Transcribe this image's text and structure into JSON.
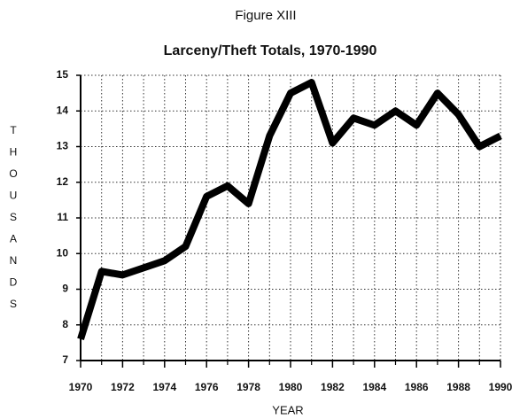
{
  "chart_data": {
    "type": "line",
    "title": "Figure XIII",
    "subtitle": "Larceny/Theft Totals, 1970-1990",
    "x_label": "YEAR",
    "y_label": "THOUSANDS",
    "x": [
      1970,
      1971,
      1972,
      1973,
      1974,
      1975,
      1976,
      1977,
      1978,
      1979,
      1980,
      1981,
      1982,
      1983,
      1984,
      1985,
      1986,
      1987,
      1988,
      1989,
      1990
    ],
    "series": [
      {
        "name": "Larceny/Theft",
        "color": "#000000",
        "values": [
          7.6,
          9.5,
          9.4,
          9.6,
          9.8,
          10.2,
          11.6,
          11.9,
          11.4,
          13.3,
          14.5,
          14.8,
          13.1,
          13.8,
          13.6,
          14.0,
          13.6,
          14.5,
          13.9,
          13.0,
          13.3
        ]
      }
    ],
    "xlim": [
      1970,
      1990
    ],
    "xticks": [
      1970,
      1972,
      1974,
      1976,
      1978,
      1980,
      1982,
      1984,
      1986,
      1988,
      1990
    ],
    "xminorticks": [
      1971,
      1973,
      1975,
      1977,
      1979,
      1981,
      1983,
      1985,
      1987,
      1989
    ],
    "ylim": [
      7,
      15
    ],
    "yticks": [
      7,
      8,
      9,
      10,
      11,
      12,
      13,
      14,
      15
    ],
    "grid": true
  }
}
